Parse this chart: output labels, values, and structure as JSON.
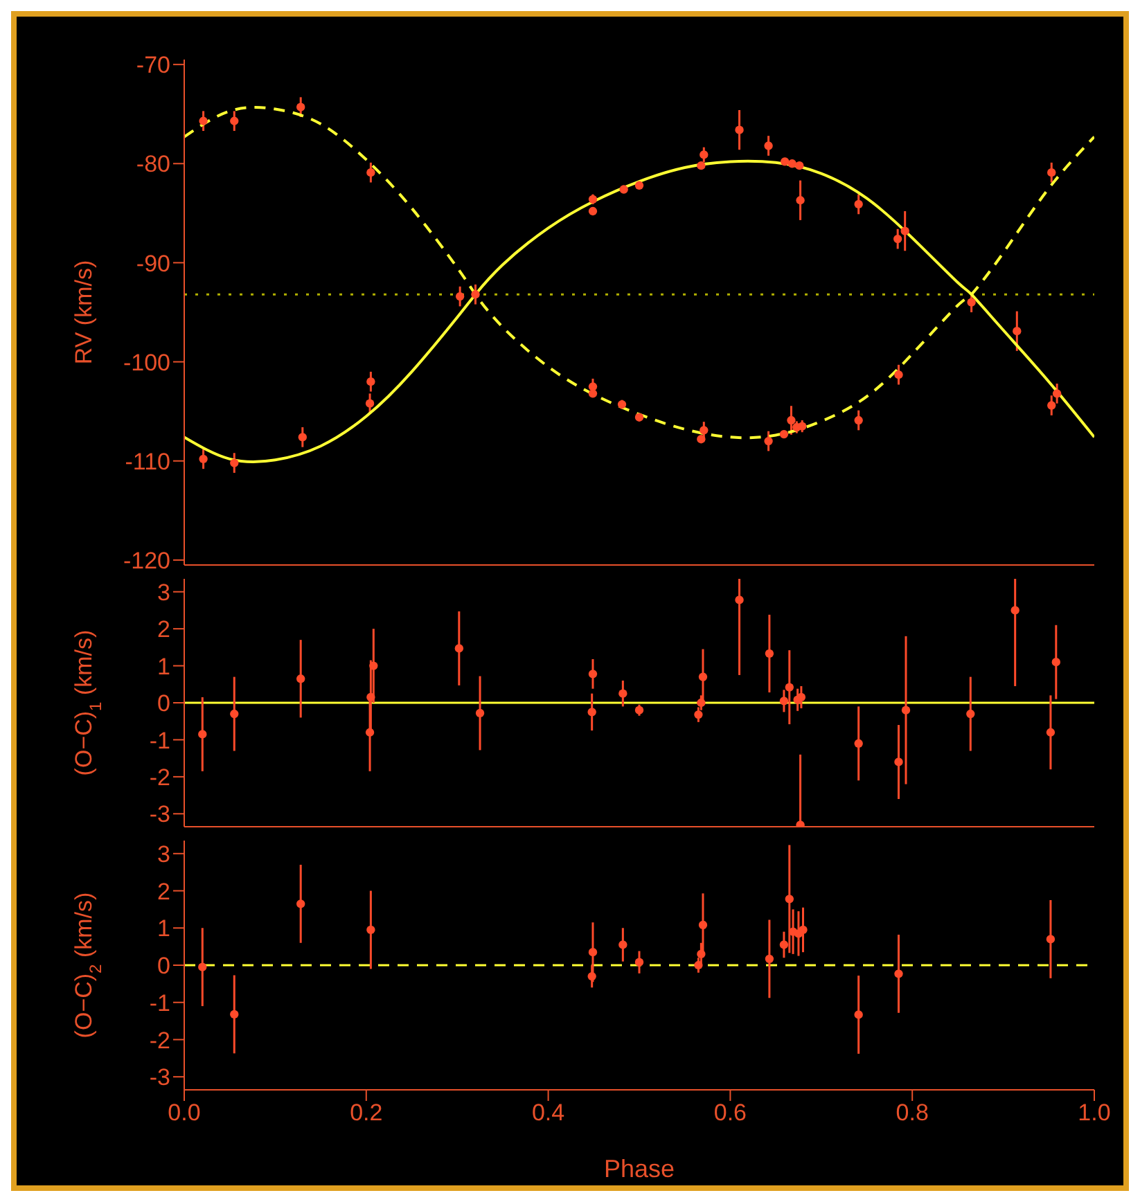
{
  "chart_data": [
    {
      "type": "scatter",
      "ylabel": "RV (km/s)",
      "xlim": [
        0,
        1
      ],
      "xticks": [
        0,
        0.2,
        0.4,
        0.6,
        0.8,
        1
      ],
      "ylim": [
        -120.5,
        -69.5
      ],
      "yticks": [
        -120,
        -110,
        -100,
        -90,
        -80,
        -70
      ],
      "tick_labels": "y",
      "series": [
        {
          "marker": "circle",
          "color": "#ff4a2a",
          "x": [
            0.021,
            0.055,
            0.13,
            0.204,
            0.205,
            0.303,
            0.32,
            0.449,
            0.449,
            0.483,
            0.5,
            0.568,
            0.571,
            0.61,
            0.642,
            0.66,
            0.668,
            0.676,
            0.677,
            0.741,
            0.784,
            0.792,
            0.865,
            0.915,
            0.953,
            0.959
          ],
          "values": [
            -109.8,
            -110.2,
            -107.6,
            -104.2,
            -102,
            -93.4,
            -93.2,
            -83.6,
            -84.8,
            -82.6,
            -82.2,
            -80.2,
            -79.1,
            -76.6,
            -78.2,
            -79.8,
            -80,
            -80.2,
            -83.7,
            -84.1,
            -87.6,
            -86.8,
            -94,
            -96.9,
            -104.4,
            -103.2
          ],
          "errors": [
            1,
            1,
            1,
            1,
            1,
            1,
            1,
            0.5,
            0.4,
            0.35,
            0.2,
            0.2,
            0.75,
            2,
            1,
            0.3,
            0.3,
            0.3,
            2,
            1,
            1,
            2,
            1,
            2,
            1,
            1
          ]
        },
        {
          "marker": "circle",
          "color": "#ff4a2a",
          "x": [
            0.021,
            0.055,
            0.128,
            0.205,
            0.449,
            0.449,
            0.481,
            0.5,
            0.568,
            0.571,
            0.642,
            0.659,
            0.667,
            0.673,
            0.679,
            0.741,
            0.785,
            0.953
          ],
          "values": [
            -75.7,
            -75.7,
            -74.3,
            -80.9,
            -102.5,
            -103.2,
            -104.3,
            -105.6,
            -107.8,
            -106.9,
            -108,
            -107.3,
            -105.9,
            -106.6,
            -106.5,
            -105.9,
            -101.3,
            -80.9
          ],
          "errors": [
            1,
            1,
            1,
            1,
            0.8,
            0.3,
            0.45,
            0.3,
            0.3,
            0.85,
            1,
            0.35,
            1.45,
            0.6,
            0.6,
            1,
            1,
            1
          ]
        },
        {
          "type": "line",
          "color": "#ffff33",
          "line_style": "solid",
          "x": [
            0,
            0.05,
            0.1,
            0.15,
            0.2,
            0.25,
            0.3,
            0.32,
            0.35,
            0.4,
            0.45,
            0.5,
            0.55,
            0.6,
            0.65,
            0.7,
            0.75,
            0.8,
            0.85,
            0.865,
            0.9,
            0.95,
            1
          ],
          "values": [
            -107.6,
            -109.8,
            -109.9,
            -108.5,
            -105.5,
            -101,
            -95.5,
            -93.2,
            -90.2,
            -86.5,
            -83.8,
            -81.8,
            -80.4,
            -79.8,
            -79.9,
            -81,
            -83.5,
            -87.5,
            -92,
            -93.2,
            -96.8,
            -102,
            -107.6
          ]
        },
        {
          "type": "line",
          "color": "#ffff33",
          "line_style": "dashed",
          "x": [
            0,
            0.05,
            0.1,
            0.15,
            0.2,
            0.25,
            0.3,
            0.32,
            0.35,
            0.4,
            0.45,
            0.5,
            0.55,
            0.6,
            0.65,
            0.7,
            0.75,
            0.8,
            0.85,
            0.865,
            0.9,
            0.95,
            1
          ],
          "values": [
            -77.3,
            -74.7,
            -74.5,
            -76,
            -79.6,
            -84.5,
            -90.5,
            -93.2,
            -96.5,
            -100.5,
            -103.3,
            -105.3,
            -106.8,
            -107.6,
            -107.4,
            -106,
            -103.5,
            -99.2,
            -94.3,
            -93.2,
            -89,
            -82.5,
            -77.3
          ]
        }
      ],
      "ref_lines": [
        {
          "axis": "y",
          "value": -93.2,
          "color": "#b0b000",
          "line_style": "dotted"
        }
      ]
    },
    {
      "type": "scatter",
      "ylabel": "(O−C)$_{1}$ (km/s)",
      "xlim": [
        0,
        1
      ],
      "xticks": [
        0,
        0.2,
        0.4,
        0.6,
        0.8,
        1
      ],
      "ylim": [
        -3.35,
        3.35
      ],
      "yticks": [
        -3,
        -2,
        -1,
        0,
        1,
        2,
        3
      ],
      "tick_labels": "y",
      "series": [
        {
          "marker": "circle",
          "color": "#ff4a2a",
          "x": [
            0.02,
            0.055,
            0.128,
            0.204,
            0.205,
            0.208,
            0.302,
            0.325,
            0.448,
            0.449,
            0.482,
            0.5,
            0.565,
            0.568,
            0.57,
            0.61,
            0.643,
            0.659,
            0.665,
            0.674,
            0.678,
            0.677,
            0.741,
            0.785,
            0.793,
            0.864,
            0.913,
            0.952,
            0.958
          ],
          "values": [
            -0.85,
            -0.3,
            0.65,
            -0.8,
            0.15,
            1,
            1.47,
            -0.28,
            -0.25,
            0.78,
            0.25,
            -0.2,
            -0.32,
            0,
            0.7,
            2.78,
            1.33,
            0.05,
            0.42,
            0.08,
            0.15,
            -3.3,
            -1.1,
            -1.6,
            -0.2,
            -0.3,
            2.5,
            -0.8,
            1.1
          ],
          "errors": [
            1,
            1,
            1.05,
            1.05,
            1,
            1,
            1,
            1,
            0.5,
            0.4,
            0.35,
            0.15,
            0.2,
            0.2,
            0.75,
            [
              0.75,
              3.35
            ],
            1.05,
            0.3,
            1,
            0.3,
            0.3,
            [
              -3.35,
              -1.4
            ],
            1,
            1,
            2,
            1,
            [
              0.45,
              3.35
            ],
            1,
            1
          ]
        }
      ],
      "ref_lines": [
        {
          "axis": "y",
          "value": 0,
          "color": "#ffff33",
          "line_style": "solid"
        }
      ]
    },
    {
      "type": "scatter",
      "xlabel": "Phase",
      "ylabel": "(O−C)$_{2}$ (km/s)",
      "xlim": [
        0,
        1
      ],
      "xticks": [
        {
          "value": 0,
          "label": "0.0"
        },
        0.2,
        0.4,
        0.6,
        0.8,
        {
          "value": 1,
          "label": "1.0"
        }
      ],
      "ylim": [
        -3.35,
        3.35
      ],
      "yticks": [
        -3,
        -2,
        -1,
        0,
        1,
        2,
        3
      ],
      "series": [
        {
          "marker": "circle",
          "color": "#ff4a2a",
          "x": [
            0.02,
            0.055,
            0.128,
            0.205,
            0.448,
            0.449,
            0.482,
            0.5,
            0.565,
            0.568,
            0.57,
            0.643,
            0.659,
            0.665,
            0.669,
            0.675,
            0.68,
            0.741,
            0.785,
            0.952
          ],
          "values": [
            -0.05,
            -1.32,
            1.65,
            0.95,
            -0.3,
            0.35,
            0.55,
            0.08,
            0,
            0.3,
            1.08,
            0.17,
            0.55,
            1.78,
            0.9,
            0.85,
            0.95,
            -1.33,
            -0.23,
            0.7
          ],
          "errors": [
            1.05,
            1.05,
            1.05,
            1.05,
            0.3,
            0.8,
            0.45,
            0.3,
            0.2,
            0.3,
            0.85,
            1.05,
            0.35,
            1.45,
            0.6,
            0.6,
            0.6,
            1.05,
            1.05,
            1.05
          ]
        }
      ],
      "ref_lines": [
        {
          "axis": "y",
          "value": 0,
          "color": "#ffff33",
          "line_style": "dashed"
        }
      ]
    }
  ]
}
